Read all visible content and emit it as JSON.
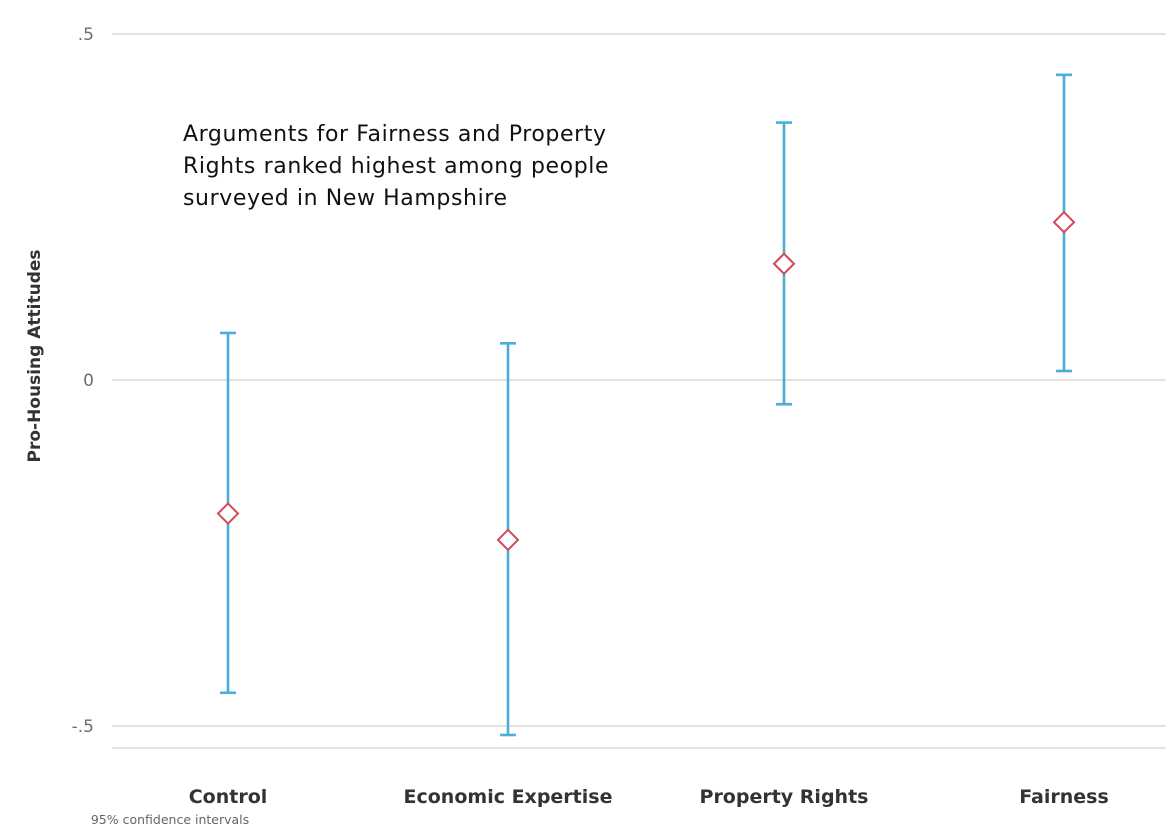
{
  "chart_data": {
    "type": "scatter",
    "subtype": "point-estimates-with-confidence-intervals",
    "categories": [
      "Control",
      "Economic Expertise",
      "Property Rights",
      "Fairness"
    ],
    "series": [
      {
        "estimates": [
          -0.193,
          -0.231,
          0.168,
          0.228
        ],
        "ci_lower": [
          -0.452,
          -0.513,
          -0.035,
          0.013
        ],
        "ci_upper": [
          0.068,
          0.053,
          0.372,
          0.441
        ]
      }
    ],
    "ylabel": "Pro-Housing Attitudes",
    "xlabel": "",
    "yticks": [
      ".5",
      "0",
      "-.5"
    ],
    "ytick_values": [
      0.5,
      0,
      -0.5
    ],
    "ylim": [
      -0.535,
      0.535
    ],
    "grid": true,
    "annotation": [
      "Arguments for Fairness and Property",
      "Rights ranked highest among people",
      "surveyed in New Hampshire"
    ],
    "footnote": "95% confidence intervals",
    "colors": {
      "ci": "#4aaed8",
      "marker": "#d04a57",
      "grid": "#d9d9d9"
    },
    "marker_shape": "hollow-diamond"
  }
}
